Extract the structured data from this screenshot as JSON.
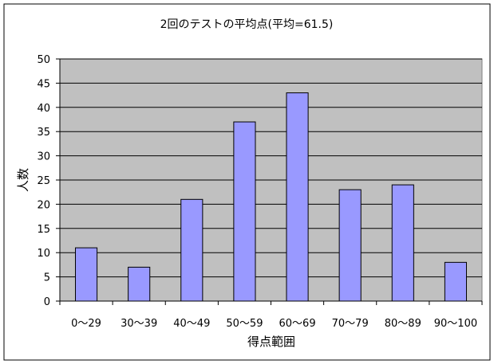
{
  "chart_data": {
    "type": "bar",
    "title": "2回のテストの平均点(平均=61.5)",
    "xlabel": "得点範囲",
    "ylabel": "人数",
    "categories": [
      "0～29",
      "30～39",
      "40～49",
      "50～59",
      "60～69",
      "70～79",
      "80～89",
      "90～100"
    ],
    "values": [
      11,
      7,
      21,
      37,
      43,
      23,
      24,
      8
    ],
    "ylim": [
      0,
      50
    ],
    "yticks": [
      0,
      5,
      10,
      15,
      20,
      25,
      30,
      35,
      40,
      45,
      50
    ],
    "grid": true,
    "legend": "none",
    "colors": {
      "bar_fill": "#9999ff",
      "bar_stroke": "#000000",
      "plot_background": "#c0c0c0",
      "grid": "#000000"
    }
  }
}
